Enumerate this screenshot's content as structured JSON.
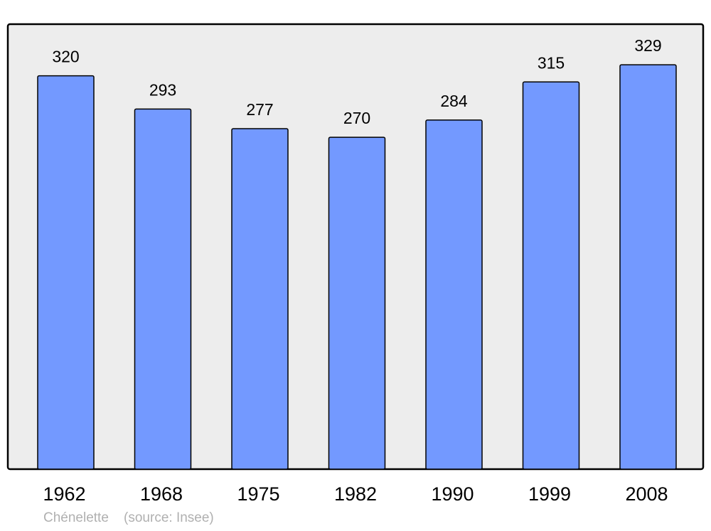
{
  "chart_data": {
    "type": "bar",
    "categories": [
      "1962",
      "1968",
      "1975",
      "1982",
      "1990",
      "1999",
      "2008"
    ],
    "values": [
      320,
      293,
      277,
      270,
      284,
      315,
      329
    ],
    "data_labels": [
      "320",
      "293",
      "277",
      "270",
      "284",
      "315",
      "329"
    ],
    "title": "",
    "xlabel": "",
    "ylabel": "",
    "ylim": [
      0,
      362
    ],
    "grid": false,
    "legend": "none",
    "colors": {
      "bar": "#7399ff",
      "plot_background": "#ededed",
      "border": "#000000"
    }
  },
  "footer": {
    "place": "Chénelette",
    "source": "(source: Insee)"
  }
}
